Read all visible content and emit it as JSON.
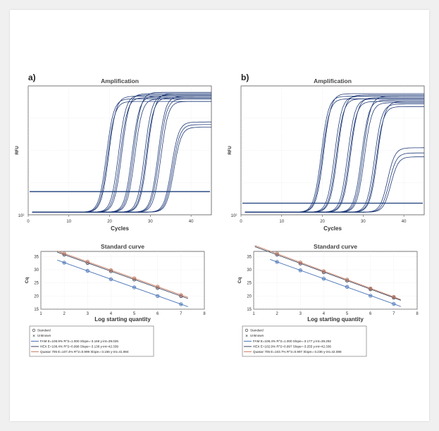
{
  "colors": {
    "amp_curve": "#1f3a78",
    "threshold": "#1a3e7a",
    "fam": "#4a74b8",
    "hex": "#3b4258",
    "quasar": "#c9826a",
    "grid": "#d8d8d8",
    "frame": "#555555"
  },
  "chart_data": [
    {
      "panel": "a)",
      "type": "line",
      "title": "Amplification",
      "xlabel": "Cycles",
      "ylabel": "RFU",
      "xlim": [
        0,
        45
      ],
      "xticks": [
        "0",
        "10",
        "20",
        "30",
        "40"
      ],
      "y_scale": "log",
      "y_min_label": "10²",
      "threshold_rfu_fraction": 0.18,
      "curves": [
        {
          "cq": 17.0,
          "plateau": 0.9
        },
        {
          "cq": 17.3,
          "plateau": 0.88
        },
        {
          "cq": 17.6,
          "plateau": 0.92
        },
        {
          "cq": 20.0,
          "plateau": 0.93
        },
        {
          "cq": 20.4,
          "plateau": 0.91
        },
        {
          "cq": 20.8,
          "plateau": 0.94
        },
        {
          "cq": 23.3,
          "plateau": 0.92
        },
        {
          "cq": 23.7,
          "plateau": 0.95
        },
        {
          "cq": 24.0,
          "plateau": 0.9
        },
        {
          "cq": 26.4,
          "plateau": 0.93
        },
        {
          "cq": 26.8,
          "plateau": 0.91
        },
        {
          "cq": 27.1,
          "plateau": 0.94
        },
        {
          "cq": 29.7,
          "plateau": 0.92
        },
        {
          "cq": 30.0,
          "plateau": 0.9
        },
        {
          "cq": 30.4,
          "plateau": 0.88
        },
        {
          "cq": 33.0,
          "plateau": 0.72
        },
        {
          "cq": 33.3,
          "plateau": 0.7
        },
        {
          "cq": 33.6,
          "plateau": 0.68
        }
      ]
    },
    {
      "panel": "b)",
      "type": "line",
      "title": "Amplification",
      "xlabel": "Cycles",
      "ylabel": "RFU",
      "xlim": [
        0,
        45
      ],
      "xticks": [
        "0",
        "10",
        "20",
        "30",
        "40"
      ],
      "y_scale": "log",
      "y_min_label": "10²",
      "threshold_rfu_fraction": 0.09,
      "curves": [
        {
          "cq": 17.5,
          "plateau": 0.92
        },
        {
          "cq": 17.8,
          "plateau": 0.9
        },
        {
          "cq": 18.1,
          "plateau": 0.94
        },
        {
          "cq": 20.8,
          "plateau": 0.92
        },
        {
          "cq": 21.2,
          "plateau": 0.9
        },
        {
          "cq": 21.5,
          "plateau": 0.93
        },
        {
          "cq": 24.0,
          "plateau": 0.9
        },
        {
          "cq": 24.4,
          "plateau": 0.88
        },
        {
          "cq": 24.7,
          "plateau": 0.91
        },
        {
          "cq": 27.4,
          "plateau": 0.89
        },
        {
          "cq": 27.8,
          "plateau": 0.92
        },
        {
          "cq": 28.1,
          "plateau": 0.87
        },
        {
          "cq": 30.6,
          "plateau": 0.86
        },
        {
          "cq": 31.0,
          "plateau": 0.84
        },
        {
          "cq": 31.3,
          "plateau": 0.88
        },
        {
          "cq": 33.8,
          "plateau": 0.52
        },
        {
          "cq": 34.2,
          "plateau": 0.48
        },
        {
          "cq": 34.6,
          "plateau": 0.45
        }
      ]
    },
    {
      "panel": "a)",
      "type": "scatter",
      "title": "Standard curve",
      "xlabel": "Log starting quantity",
      "ylabel": "Cq",
      "xlim": [
        1,
        8
      ],
      "ylim": [
        15,
        37
      ],
      "xticks": [
        "1",
        "2",
        "3",
        "4",
        "5",
        "6",
        "7",
        "8"
      ],
      "yticks": [
        "15",
        "20",
        "25",
        "30",
        "35"
      ],
      "x": [
        2,
        3,
        4,
        5,
        6,
        7
      ],
      "series": [
        {
          "name": "FAM",
          "values": [
            32.7,
            29.6,
            26.4,
            23.3,
            20.0,
            16.9
          ]
        },
        {
          "name": "HEX",
          "values": [
            35.8,
            32.6,
            29.5,
            26.3,
            23.1,
            20.0
          ]
        },
        {
          "name": "Quasar 705",
          "values": [
            36.2,
            33.1,
            29.9,
            26.8,
            23.6,
            20.4
          ]
        }
      ],
      "legend": {
        "position": "below",
        "markers": [
          "Standard",
          "Unknown"
        ],
        "entries": [
          "FAM      E=106.9% R^2=1.000 Slope=-3.166 y-int=39.026",
          "HEX      E=108.4% R^2=0.998 Slope=-3.136 y-int=42.339",
          "Quasar 705 E=107.4% R^2=0.999 Slope=-3.156 y-int=41.984"
        ]
      }
    },
    {
      "panel": "b)",
      "type": "scatter",
      "title": "Standard curve",
      "xlabel": "Log starting quantity",
      "ylabel": "Cq",
      "xlim": [
        1,
        8
      ],
      "ylim": [
        15,
        37
      ],
      "xticks": [
        "1",
        "2",
        "3",
        "4",
        "5",
        "6",
        "7",
        "8"
      ],
      "yticks": [
        "15",
        "20",
        "25",
        "30",
        "35"
      ],
      "x": [
        2,
        3,
        4,
        5,
        6,
        7
      ],
      "series": [
        {
          "name": "FAM",
          "values": [
            33.0,
            29.8,
            26.6,
            23.5,
            20.1,
            17.0
          ]
        },
        {
          "name": "HEX",
          "values": [
            35.8,
            32.4,
            29.1,
            25.9,
            22.6,
            19.4
          ]
        },
        {
          "name": "Quasar 705",
          "values": [
            36.2,
            32.8,
            29.5,
            26.3,
            22.9,
            19.7
          ]
        }
      ],
      "legend": {
        "position": "below",
        "markers": [
          "Standard",
          "Unknown"
        ],
        "entries": [
          "FAM      E=106.4% R^2=1.000 Slope=-3.177 y-int=39.292",
          "HEX      E=102.9% R^2=0.997 Slope=-3.255 y-int=42.336",
          "Quasar 705 E=103.7% R^2=0.997 Slope=-3.236 y-int=42.088"
        ]
      }
    }
  ]
}
